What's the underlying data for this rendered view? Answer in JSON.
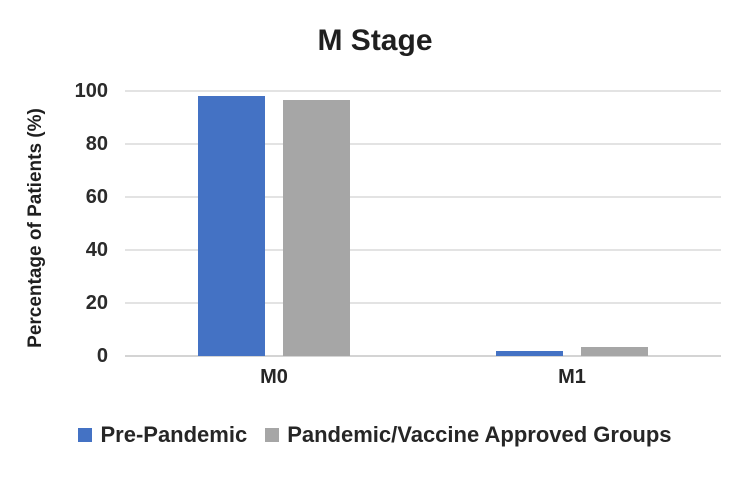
{
  "chart_data": {
    "type": "bar",
    "title": "M Stage",
    "ylabel": "Percentage of Patients (%)",
    "categories": [
      "M0",
      "M1"
    ],
    "series": [
      {
        "name": "Pre-Pandemic",
        "color": "#4472C4",
        "values": [
          98,
          2
        ]
      },
      {
        "name": "Pandemic/Vaccine Approved Groups",
        "color": "#A6A6A6",
        "values": [
          96.5,
          3.5
        ]
      }
    ],
    "ylim": [
      0,
      100
    ],
    "yticks": [
      0,
      20,
      40,
      60,
      80,
      100
    ],
    "grid": true,
    "legend_position": "bottom"
  },
  "colors": {
    "series_blue": "#4472C4",
    "series_gray": "#A6A6A6",
    "gridline": "#E3E3E3",
    "axis_line": "#D4D4D4",
    "text": "#262626",
    "background": "#FFFFFF"
  }
}
